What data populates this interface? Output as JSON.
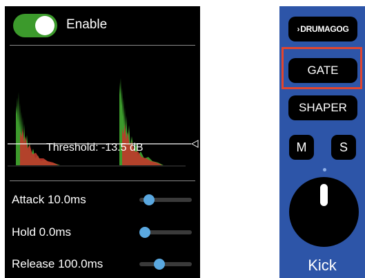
{
  "gate_panel": {
    "enable": {
      "label": "Enable",
      "on": true,
      "color": "#3c9a2c"
    },
    "threshold_label": "Threshold: -13.5 dB",
    "params": [
      {
        "label": "Attack 10.0ms",
        "level": 0.1
      },
      {
        "label": "Hold 0.0ms",
        "level": 0.0
      },
      {
        "label": "Release 100.0ms",
        "level": 0.35
      }
    ],
    "slider_color": "#5aa8e0",
    "waveform_colors": [
      "#3c9a2c",
      "#c0392b"
    ]
  },
  "strip": {
    "logo_label": "DRUMAGOG",
    "gate_label": "GATE",
    "shaper_label": "SHAPER",
    "mute_label": "M",
    "solo_label": "S",
    "channel_name": "Kick",
    "background_color": "#2d55a8",
    "highlight_color": "#e2452e",
    "knob_icon": "volume-knob-icon"
  }
}
